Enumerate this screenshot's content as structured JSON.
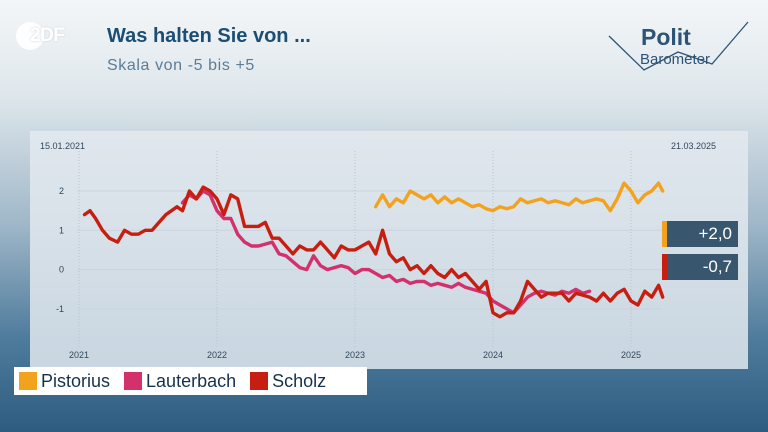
{
  "header": {
    "logo_text": "2DF",
    "title": "Was halten Sie von ...",
    "subtitle": "Skala von -5 bis +5",
    "brand_line1": "Polit",
    "brand_line2": "Barometer"
  },
  "colors": {
    "Pistorius": "#f3a21e",
    "Lauterbach": "#d3306c",
    "Scholz": "#c61e10",
    "value_box_bg": "#39566f",
    "title": "#1c4e74"
  },
  "value_boxes": [
    {
      "series": "Pistorius",
      "text": "+2,0"
    },
    {
      "series": "Scholz",
      "text": "-0,7"
    }
  ],
  "chart_data": {
    "type": "line",
    "date_start_label": "15.01.2021",
    "date_end_label": "21.03.2025",
    "x_ticks": [
      "2021",
      "2022",
      "2023",
      "2024",
      "2025"
    ],
    "y_ticks": [
      "2",
      "1",
      "0",
      "-1"
    ],
    "ylim": [
      -1.6,
      2.4
    ],
    "xlim": [
      2021.0,
      2025.25
    ],
    "grid": true,
    "legend_position": "bottom-left",
    "legend": [
      "Pistorius",
      "Lauterbach",
      "Scholz"
    ],
    "series": [
      {
        "name": "Pistorius",
        "x": [
          2023.15,
          2023.2,
          2023.25,
          2023.3,
          2023.35,
          2023.4,
          2023.45,
          2023.5,
          2023.55,
          2023.6,
          2023.65,
          2023.7,
          2023.75,
          2023.8,
          2023.85,
          2023.9,
          2023.95,
          2024.0,
          2024.05,
          2024.1,
          2024.15,
          2024.2,
          2024.25,
          2024.3,
          2024.35,
          2024.4,
          2024.45,
          2024.5,
          2024.55,
          2024.6,
          2024.65,
          2024.7,
          2024.75,
          2024.8,
          2024.85,
          2024.9,
          2024.95,
          2025.0,
          2025.05,
          2025.1,
          2025.15,
          2025.2,
          2025.23
        ],
        "values": [
          1.6,
          1.9,
          1.6,
          1.8,
          1.7,
          2.0,
          1.9,
          1.8,
          1.9,
          1.7,
          1.85,
          1.7,
          1.8,
          1.7,
          1.6,
          1.65,
          1.55,
          1.5,
          1.6,
          1.55,
          1.6,
          1.8,
          1.7,
          1.75,
          1.8,
          1.7,
          1.75,
          1.7,
          1.65,
          1.8,
          1.7,
          1.75,
          1.8,
          1.75,
          1.5,
          1.8,
          2.2,
          2.0,
          1.7,
          1.9,
          2.0,
          2.2,
          2.0
        ]
      },
      {
        "name": "Lauterbach",
        "x": [
          2021.75,
          2021.8,
          2021.85,
          2021.9,
          2021.95,
          2022.0,
          2022.05,
          2022.1,
          2022.15,
          2022.2,
          2022.25,
          2022.3,
          2022.35,
          2022.4,
          2022.45,
          2022.5,
          2022.55,
          2022.6,
          2022.65,
          2022.7,
          2022.75,
          2022.8,
          2022.85,
          2022.9,
          2022.95,
          2023.0,
          2023.05,
          2023.1,
          2023.15,
          2023.2,
          2023.25,
          2023.3,
          2023.35,
          2023.4,
          2023.45,
          2023.5,
          2023.55,
          2023.6,
          2023.65,
          2023.7,
          2023.75,
          2023.8,
          2023.85,
          2023.9,
          2023.95,
          2024.0,
          2024.05,
          2024.1,
          2024.15,
          2024.2,
          2024.25,
          2024.3,
          2024.35,
          2024.4,
          2024.45,
          2024.5,
          2024.55,
          2024.6,
          2024.65,
          2024.7
        ],
        "values": [
          1.7,
          1.9,
          1.8,
          2.0,
          1.9,
          1.5,
          1.3,
          1.3,
          0.9,
          0.7,
          0.6,
          0.6,
          0.65,
          0.7,
          0.4,
          0.35,
          0.2,
          0.05,
          0.0,
          0.35,
          0.1,
          0.0,
          0.05,
          0.1,
          0.05,
          -0.1,
          0.0,
          0.0,
          -0.1,
          -0.2,
          -0.15,
          -0.3,
          -0.25,
          -0.35,
          -0.3,
          -0.3,
          -0.4,
          -0.35,
          -0.4,
          -0.45,
          -0.35,
          -0.45,
          -0.5,
          -0.55,
          -0.6,
          -0.8,
          -0.9,
          -1.0,
          -1.1,
          -0.9,
          -0.7,
          -0.6,
          -0.55,
          -0.6,
          -0.65,
          -0.55,
          -0.6,
          -0.5,
          -0.6,
          -0.55
        ]
      },
      {
        "name": "Scholz",
        "x": [
          2021.04,
          2021.08,
          2021.12,
          2021.17,
          2021.22,
          2021.28,
          2021.33,
          2021.38,
          2021.43,
          2021.48,
          2021.53,
          2021.58,
          2021.63,
          2021.67,
          2021.71,
          2021.75,
          2021.8,
          2021.85,
          2021.9,
          2021.95,
          2022.0,
          2022.05,
          2022.1,
          2022.15,
          2022.2,
          2022.25,
          2022.3,
          2022.35,
          2022.4,
          2022.45,
          2022.5,
          2022.55,
          2022.6,
          2022.65,
          2022.7,
          2022.75,
          2022.8,
          2022.85,
          2022.9,
          2022.95,
          2023.0,
          2023.05,
          2023.1,
          2023.15,
          2023.2,
          2023.25,
          2023.3,
          2023.35,
          2023.4,
          2023.45,
          2023.5,
          2023.55,
          2023.6,
          2023.65,
          2023.7,
          2023.75,
          2023.8,
          2023.85,
          2023.9,
          2023.95,
          2024.0,
          2024.05,
          2024.1,
          2024.15,
          2024.2,
          2024.25,
          2024.3,
          2024.35,
          2024.4,
          2024.45,
          2024.5,
          2024.55,
          2024.6,
          2024.65,
          2024.7,
          2024.75,
          2024.8,
          2024.85,
          2024.9,
          2024.95,
          2025.0,
          2025.05,
          2025.1,
          2025.15,
          2025.2,
          2025.23
        ],
        "values": [
          1.4,
          1.5,
          1.3,
          1.0,
          0.8,
          0.7,
          1.0,
          0.9,
          0.9,
          1.0,
          1.0,
          1.2,
          1.4,
          1.5,
          1.6,
          1.5,
          2.0,
          1.8,
          2.1,
          2.0,
          1.8,
          1.4,
          1.9,
          1.8,
          1.1,
          1.1,
          1.1,
          1.2,
          0.8,
          0.8,
          0.6,
          0.4,
          0.6,
          0.5,
          0.5,
          0.7,
          0.5,
          0.3,
          0.6,
          0.5,
          0.5,
          0.6,
          0.7,
          0.4,
          1.0,
          0.4,
          0.2,
          0.3,
          0.0,
          0.1,
          -0.1,
          0.1,
          -0.1,
          -0.2,
          0.0,
          -0.2,
          -0.1,
          -0.3,
          -0.5,
          -0.3,
          -1.1,
          -1.2,
          -1.1,
          -1.1,
          -0.8,
          -0.3,
          -0.5,
          -0.7,
          -0.6,
          -0.6,
          -0.6,
          -0.8,
          -0.6,
          -0.65,
          -0.7,
          -0.8,
          -0.6,
          -0.8,
          -0.6,
          -0.5,
          -0.8,
          -0.9,
          -0.55,
          -0.7,
          -0.4,
          -0.7
        ]
      }
    ]
  }
}
